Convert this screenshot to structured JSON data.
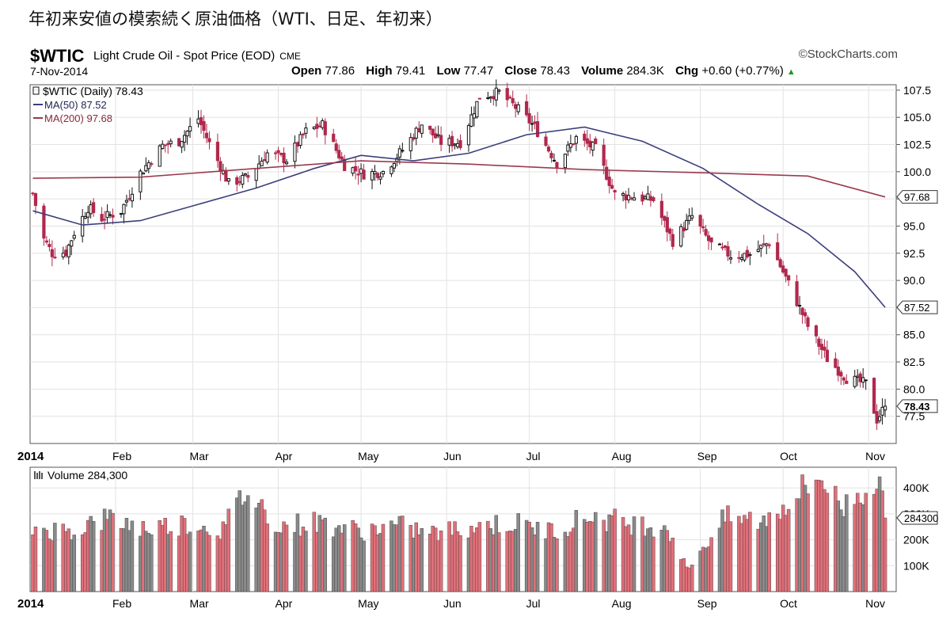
{
  "headline": "年初来安値の模索続く原油価格（WTI、日足、年初来）",
  "header": {
    "symbol": "$WTIC",
    "description": "Light Crude Oil - Spot Price (EOD)",
    "exchange": "CME",
    "copyright": "©StockCharts.com",
    "date": "7-Nov-2014",
    "open_label": "Open",
    "open": "77.86",
    "high_label": "High",
    "high": "79.41",
    "low_label": "Low",
    "low": "77.47",
    "close_label": "Close",
    "close": "78.43",
    "volume_label": "Volume",
    "volume": "284.3K",
    "chg_label": "Chg",
    "chg": "+0.60 (+0.77%)",
    "chg_icon": "triangle-up-icon"
  },
  "legend": {
    "price": "$WTIC (Daily) 78.43",
    "ma50": "MA(50) 87.52",
    "ma200": "MA(200) 97.68",
    "volume": "Volume 284,300"
  },
  "markers": {
    "ma200": "97.68",
    "ma50": "87.52",
    "close": "78.43",
    "volume": "284300"
  },
  "colors": {
    "up_candle": "#111111",
    "down_candle": "#b0294d",
    "ma50": "#3a3f7a",
    "ma200": "#9a3a4e",
    "volume_up": "#8a8a8a",
    "volume_down": "#e0707a"
  },
  "chart_data": [
    {
      "type": "candlestick",
      "title": "$WTIC (Daily) 78.43",
      "year_label": "2014",
      "x_ticks": [
        "Feb",
        "Mar",
        "Apr",
        "May",
        "Jun",
        "Jul",
        "Aug",
        "Sep",
        "Oct",
        "Nov"
      ],
      "y_ticks": [
        "77.5",
        "80.0",
        "82.5",
        "85.0",
        "87.5",
        "90.0",
        "92.5",
        "95.0",
        "97.5",
        "100.0",
        "102.5",
        "105.0",
        "107.5"
      ],
      "ylim": [
        75,
        108
      ],
      "grid": true,
      "close_points": [
        {
          "x": "2014-01-02",
          "y": 98.0
        },
        {
          "x": "2014-01-06",
          "y": 93.8
        },
        {
          "x": "2014-01-09",
          "y": 92.5
        },
        {
          "x": "2014-01-14",
          "y": 92.6
        },
        {
          "x": "2014-01-17",
          "y": 94.4
        },
        {
          "x": "2014-01-22",
          "y": 96.7
        },
        {
          "x": "2014-01-27",
          "y": 95.7
        },
        {
          "x": "2014-02-03",
          "y": 96.4
        },
        {
          "x": "2014-02-10",
          "y": 99.9
        },
        {
          "x": "2014-02-18",
          "y": 102.4
        },
        {
          "x": "2014-02-24",
          "y": 102.8
        },
        {
          "x": "2014-03-03",
          "y": 104.9
        },
        {
          "x": "2014-03-07",
          "y": 102.6
        },
        {
          "x": "2014-03-14",
          "y": 98.9
        },
        {
          "x": "2014-03-21",
          "y": 99.5
        },
        {
          "x": "2014-03-28",
          "y": 101.7
        },
        {
          "x": "2014-04-04",
          "y": 101.1
        },
        {
          "x": "2014-04-11",
          "y": 103.7
        },
        {
          "x": "2014-04-17",
          "y": 104.3
        },
        {
          "x": "2014-04-25",
          "y": 100.6
        },
        {
          "x": "2014-05-02",
          "y": 99.8
        },
        {
          "x": "2014-05-09",
          "y": 100.0
        },
        {
          "x": "2014-05-16",
          "y": 102.0
        },
        {
          "x": "2014-05-23",
          "y": 104.4
        },
        {
          "x": "2014-05-30",
          "y": 102.7
        },
        {
          "x": "2014-06-06",
          "y": 102.7
        },
        {
          "x": "2014-06-13",
          "y": 106.9
        },
        {
          "x": "2014-06-20",
          "y": 107.3
        },
        {
          "x": "2014-06-27",
          "y": 105.7
        },
        {
          "x": "2014-07-03",
          "y": 104.1
        },
        {
          "x": "2014-07-11",
          "y": 100.8
        },
        {
          "x": "2014-07-18",
          "y": 103.1
        },
        {
          "x": "2014-07-25",
          "y": 102.1
        },
        {
          "x": "2014-08-01",
          "y": 97.9
        },
        {
          "x": "2014-08-08",
          "y": 97.7
        },
        {
          "x": "2014-08-15",
          "y": 97.4
        },
        {
          "x": "2014-08-22",
          "y": 93.6
        },
        {
          "x": "2014-08-29",
          "y": 95.9
        },
        {
          "x": "2014-09-05",
          "y": 93.3
        },
        {
          "x": "2014-09-12",
          "y": 92.3
        },
        {
          "x": "2014-09-19",
          "y": 92.4
        },
        {
          "x": "2014-09-26",
          "y": 93.5
        },
        {
          "x": "2014-10-03",
          "y": 89.7
        },
        {
          "x": "2014-10-10",
          "y": 85.8
        },
        {
          "x": "2014-10-17",
          "y": 82.8
        },
        {
          "x": "2014-10-24",
          "y": 81.0
        },
        {
          "x": "2014-10-31",
          "y": 80.5
        },
        {
          "x": "2014-11-04",
          "y": 77.2
        },
        {
          "x": "2014-11-07",
          "y": 78.43
        }
      ],
      "series": [
        {
          "name": "MA(50) 87.52",
          "points": [
            {
              "x": "2014-01-02",
              "y": 96.4
            },
            {
              "x": "2014-01-20",
              "y": 95.1
            },
            {
              "x": "2014-02-10",
              "y": 95.5
            },
            {
              "x": "2014-03-03",
              "y": 97.0
            },
            {
              "x": "2014-03-24",
              "y": 98.5
            },
            {
              "x": "2014-04-14",
              "y": 100.3
            },
            {
              "x": "2014-05-01",
              "y": 101.5
            },
            {
              "x": "2014-05-20",
              "y": 101.0
            },
            {
              "x": "2014-06-09",
              "y": 101.7
            },
            {
              "x": "2014-06-30",
              "y": 103.4
            },
            {
              "x": "2014-07-21",
              "y": 104.1
            },
            {
              "x": "2014-08-11",
              "y": 102.8
            },
            {
              "x": "2014-09-02",
              "y": 100.3
            },
            {
              "x": "2014-09-22",
              "y": 97.0
            },
            {
              "x": "2014-10-10",
              "y": 94.3
            },
            {
              "x": "2014-10-27",
              "y": 90.8
            },
            {
              "x": "2014-11-07",
              "y": 87.52
            }
          ]
        },
        {
          "name": "MA(200) 97.68",
          "points": [
            {
              "x": "2014-01-02",
              "y": 99.4
            },
            {
              "x": "2014-02-10",
              "y": 99.5
            },
            {
              "x": "2014-03-24",
              "y": 100.3
            },
            {
              "x": "2014-05-01",
              "y": 101.0
            },
            {
              "x": "2014-06-09",
              "y": 100.7
            },
            {
              "x": "2014-07-21",
              "y": 100.2
            },
            {
              "x": "2014-09-02",
              "y": 99.9
            },
            {
              "x": "2014-10-10",
              "y": 99.6
            },
            {
              "x": "2014-11-07",
              "y": 97.68
            }
          ]
        }
      ]
    },
    {
      "type": "bar",
      "title": "Volume 284,300",
      "year_label": "2014",
      "x_ticks": [
        "Feb",
        "Mar",
        "Apr",
        "May",
        "Jun",
        "Jul",
        "Aug",
        "Sep",
        "Oct",
        "Nov"
      ],
      "y_ticks": [
        "100K",
        "200K",
        "300K",
        "400K"
      ],
      "ylim": [
        0,
        480000
      ],
      "grid": true,
      "values": [
        {
          "x": "2014-01-02",
          "y": 250000
        },
        {
          "x": "2014-01-15",
          "y": 240000
        },
        {
          "x": "2014-01-29",
          "y": 290000
        },
        {
          "x": "2014-02-12",
          "y": 250000
        },
        {
          "x": "2014-02-26",
          "y": 270000
        },
        {
          "x": "2014-03-12",
          "y": 245000
        },
        {
          "x": "2014-03-20",
          "y": 395000
        },
        {
          "x": "2014-04-02",
          "y": 260000
        },
        {
          "x": "2014-04-16",
          "y": 275000
        },
        {
          "x": "2014-04-30",
          "y": 240000
        },
        {
          "x": "2014-05-14",
          "y": 260000
        },
        {
          "x": "2014-05-28",
          "y": 230000
        },
        {
          "x": "2014-06-11",
          "y": 260000
        },
        {
          "x": "2014-06-25",
          "y": 270000
        },
        {
          "x": "2014-07-09",
          "y": 240000
        },
        {
          "x": "2014-07-23",
          "y": 300000
        },
        {
          "x": "2014-08-06",
          "y": 270000
        },
        {
          "x": "2014-08-20",
          "y": 260000
        },
        {
          "x": "2014-08-27",
          "y": 90000
        },
        {
          "x": "2014-09-10",
          "y": 290000
        },
        {
          "x": "2014-09-24",
          "y": 280000
        },
        {
          "x": "2014-10-08",
          "y": 400000
        },
        {
          "x": "2014-10-15",
          "y": 460000
        },
        {
          "x": "2014-10-22",
          "y": 330000
        },
        {
          "x": "2014-11-04",
          "y": 450000
        },
        {
          "x": "2014-11-07",
          "y": 284300
        }
      ]
    }
  ]
}
